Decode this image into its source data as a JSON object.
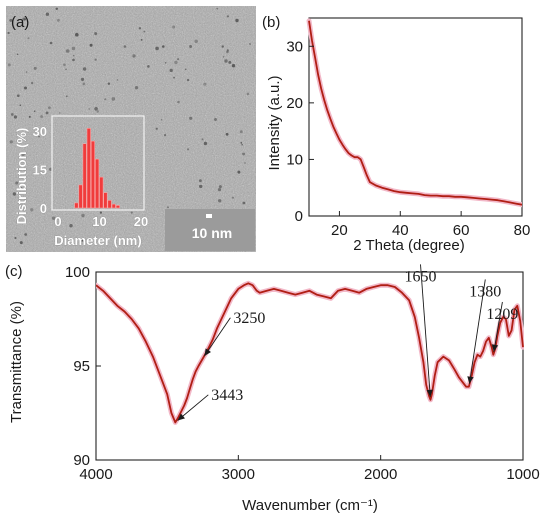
{
  "colors": {
    "curve": "#b01e14",
    "curve_glow": "#f2b8c8",
    "histogram": "#f03c3c",
    "histogram_glow": "#f8a8a8",
    "tem_background": "#a8a8a8",
    "axis": "#222222"
  },
  "panel_a": {
    "label": "(a)",
    "scale_bar_label": "10 nm",
    "inset_histogram": {
      "type": "bar",
      "xlabel": "Diameter (nm)",
      "ylabel": "Distribution (%)",
      "xlim": [
        0,
        20
      ],
      "ylim": [
        0,
        35
      ],
      "x_ticks": [
        0,
        10,
        20
      ],
      "y_ticks": [
        0,
        15,
        30
      ],
      "bin_width": 1,
      "bin_centers": [
        4.5,
        5.5,
        6.5,
        7.5,
        8.5,
        9.5,
        10.5,
        11.5,
        12.5,
        13.5,
        14.5
      ],
      "values": [
        2,
        9,
        25,
        31,
        26,
        19,
        12,
        6,
        3,
        1.5,
        1
      ]
    }
  },
  "chart_data": [
    {
      "id": "b",
      "type": "line",
      "label": "(b)",
      "xlabel": "2 Theta (degree)",
      "ylabel": "Intensity (a.u.)",
      "xlim": [
        10,
        80
      ],
      "ylim": [
        0,
        35
      ],
      "x_ticks": [
        20,
        40,
        60,
        80
      ],
      "y_ticks": [
        0,
        10,
        20,
        30
      ],
      "grid": false,
      "series": [
        {
          "x": [
            10,
            11,
            12,
            13,
            14,
            15,
            16,
            17,
            18,
            19,
            20,
            21,
            22,
            23,
            24,
            25,
            26,
            27,
            28,
            29,
            30,
            32,
            34,
            36,
            38,
            40,
            42,
            44,
            46,
            48,
            50,
            52,
            54,
            56,
            58,
            60,
            62,
            64,
            66,
            68,
            70,
            72,
            74,
            76,
            78,
            80
          ],
          "y": [
            34.5,
            31,
            28,
            25,
            22.5,
            20.5,
            18.7,
            17.2,
            15.8,
            14.6,
            13.5,
            12.6,
            11.8,
            11.1,
            10.7,
            10.4,
            10.4,
            10.0,
            8.6,
            7.2,
            6.0,
            5.4,
            5.0,
            4.7,
            4.4,
            4.2,
            4.1,
            4.0,
            3.9,
            3.7,
            3.6,
            3.6,
            3.5,
            3.5,
            3.4,
            3.4,
            3.3,
            3.2,
            3.1,
            3.0,
            2.9,
            2.8,
            2.6,
            2.4,
            2.2,
            2.0
          ]
        }
      ]
    },
    {
      "id": "c",
      "type": "line",
      "label": "(c)",
      "xlabel": "Wavenumber (cm⁻¹)",
      "ylabel": "Transmittance (%)",
      "xlim": [
        4000,
        1000
      ],
      "ylim": [
        90,
        100
      ],
      "x_ticks": [
        4000,
        3000,
        2000,
        1000
      ],
      "y_ticks": [
        90,
        95,
        100
      ],
      "grid": false,
      "series": [
        {
          "x": [
            4000,
            3950,
            3900,
            3850,
            3800,
            3750,
            3700,
            3650,
            3600,
            3550,
            3500,
            3470,
            3443,
            3420,
            3400,
            3380,
            3360,
            3340,
            3320,
            3300,
            3280,
            3250,
            3220,
            3180,
            3150,
            3100,
            3050,
            3000,
            2960,
            2930,
            2900,
            2870,
            2850,
            2800,
            2750,
            2700,
            2650,
            2600,
            2550,
            2500,
            2450,
            2400,
            2350,
            2300,
            2250,
            2200,
            2150,
            2100,
            2050,
            2000,
            1950,
            1900,
            1850,
            1800,
            1760,
            1730,
            1700,
            1680,
            1660,
            1650,
            1640,
            1620,
            1600,
            1560,
            1520,
            1480,
            1450,
            1420,
            1400,
            1380,
            1360,
            1340,
            1320,
            1300,
            1280,
            1260,
            1240,
            1220,
            1209,
            1195,
            1180,
            1160,
            1140,
            1120,
            1100,
            1080,
            1060,
            1040,
            1020,
            1000
          ],
          "y": [
            99.3,
            99.0,
            98.6,
            98.2,
            97.9,
            97.5,
            97.0,
            96.3,
            95.5,
            94.5,
            93.5,
            92.5,
            92.0,
            92.3,
            92.6,
            92.9,
            93.3,
            93.8,
            94.3,
            94.7,
            95.0,
            95.4,
            95.8,
            96.4,
            97.0,
            97.8,
            98.6,
            99.1,
            99.3,
            99.4,
            99.3,
            99.0,
            98.9,
            99.0,
            99.1,
            99.0,
            98.9,
            98.8,
            98.9,
            99.0,
            98.8,
            98.7,
            98.6,
            99.0,
            99.1,
            99.0,
            98.9,
            99.1,
            99.2,
            99.3,
            99.3,
            99.2,
            98.9,
            98.5,
            97.6,
            96.5,
            95.2,
            94.0,
            93.4,
            93.2,
            93.5,
            94.5,
            95.2,
            95.5,
            95.3,
            94.8,
            94.4,
            94.1,
            93.9,
            93.9,
            94.5,
            95.2,
            95.6,
            95.5,
            95.8,
            96.3,
            96.5,
            96.0,
            95.6,
            95.9,
            96.6,
            97.3,
            97.6,
            97.5,
            96.6,
            96.9,
            98.0,
            98.2,
            97.4,
            96.0
          ]
        }
      ],
      "annotations": [
        {
          "text": "3443",
          "x": 3443,
          "y": 92.0
        },
        {
          "text": "3250",
          "x": 3250,
          "y": 95.4
        },
        {
          "text": "1650",
          "x": 1650,
          "y": 93.2
        },
        {
          "text": "1380",
          "x": 1380,
          "y": 93.9
        },
        {
          "text": "1209",
          "x": 1209,
          "y": 95.6
        }
      ]
    }
  ]
}
